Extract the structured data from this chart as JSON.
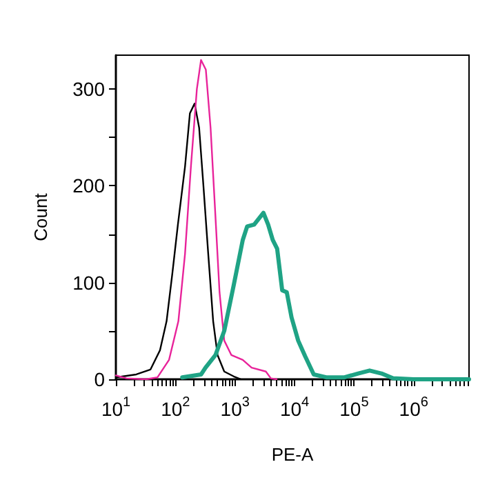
{
  "chart_data": {
    "type": "line",
    "xlabel": "PE-A",
    "ylabel": "Count",
    "log": "x",
    "grid": false,
    "marker": "none",
    "line_style": "solid",
    "xlim": [
      10,
      8500000
    ],
    "ylim": [
      0,
      335
    ],
    "xticks": [
      {
        "value": 10,
        "label": "10$^{1}$"
      },
      {
        "value": 20,
        "label": null
      },
      {
        "value": 30,
        "label": null
      },
      {
        "value": 40,
        "label": null
      },
      {
        "value": 50,
        "label": null
      },
      {
        "value": 60,
        "label": null
      },
      {
        "value": 70,
        "label": null
      },
      {
        "value": 80,
        "label": null
      },
      {
        "value": 90,
        "label": null
      },
      {
        "value": 100,
        "label": "10$^{2}$"
      },
      {
        "value": 200,
        "label": null
      },
      {
        "value": 300,
        "label": null
      },
      {
        "value": 400,
        "label": null
      },
      {
        "value": 500,
        "label": null
      },
      {
        "value": 600,
        "label": null
      },
      {
        "value": 700,
        "label": null
      },
      {
        "value": 800,
        "label": null
      },
      {
        "value": 900,
        "label": null
      },
      {
        "value": 1000,
        "label": "10$^{3}$"
      },
      {
        "value": 2000,
        "label": null
      },
      {
        "value": 3000,
        "label": null
      },
      {
        "value": 4000,
        "label": null
      },
      {
        "value": 5000,
        "label": null
      },
      {
        "value": 6000,
        "label": null
      },
      {
        "value": 7000,
        "label": null
      },
      {
        "value": 8000,
        "label": null
      },
      {
        "value": 9000,
        "label": null
      },
      {
        "value": 10000,
        "label": "10$^{4}$"
      },
      {
        "value": 20000,
        "label": null
      },
      {
        "value": 30000,
        "label": null
      },
      {
        "value": 40000,
        "label": null
      },
      {
        "value": 50000,
        "label": null
      },
      {
        "value": 60000,
        "label": null
      },
      {
        "value": 70000,
        "label": null
      },
      {
        "value": 80000,
        "label": null
      },
      {
        "value": 90000,
        "label": null
      },
      {
        "value": 100000,
        "label": "10$^{5}$"
      },
      {
        "value": 200000,
        "label": null
      },
      {
        "value": 300000,
        "label": null
      },
      {
        "value": 400000,
        "label": null
      },
      {
        "value": 500000,
        "label": null
      },
      {
        "value": 600000,
        "label": null
      },
      {
        "value": 700000,
        "label": null
      },
      {
        "value": 800000,
        "label": null
      },
      {
        "value": 900000,
        "label": null
      },
      {
        "value": 1000000,
        "label": "10$^{6}$"
      },
      {
        "value": 2000000,
        "label": null
      },
      {
        "value": 3000000,
        "label": null
      },
      {
        "value": 4000000,
        "label": null
      },
      {
        "value": 5000000,
        "label": null
      },
      {
        "value": 6000000,
        "label": null
      },
      {
        "value": 7000000,
        "label": null
      },
      {
        "value": 8000000,
        "label": null
      }
    ],
    "yticks": [
      0,
      {
        "value": 50,
        "label": null
      },
      100,
      {
        "value": 150,
        "label": null
      },
      200,
      {
        "value": 250,
        "label": null
      },
      300
    ],
    "series": [
      {
        "color": "#000000",
        "x": [
          10,
          22,
          38,
          55,
          71,
          89,
          110,
          145,
          175,
          210,
          250,
          295,
          355,
          430,
          510,
          660,
          950,
          1260
        ],
        "values": [
          2,
          5,
          10,
          30,
          60,
          110,
          160,
          220,
          275,
          285,
          260,
          200,
          130,
          60,
          25,
          8,
          3,
          0
        ]
      },
      {
        "color": "#e8239a",
        "x": [
          10,
          15,
          32,
          50,
          78,
          112,
          145,
          182,
          229,
          269,
          324,
          389,
          468,
          550,
          660,
          870,
          1350,
          1900,
          3300,
          4000,
          5000
        ],
        "values": [
          4,
          1,
          0,
          2,
          20,
          60,
          130,
          220,
          300,
          330,
          320,
          260,
          170,
          90,
          40,
          25,
          20,
          12,
          8,
          1,
          0
        ]
      },
      {
        "color": "#1fa385",
        "x": [
          130,
          270,
          320,
          470,
          660,
          950,
          1350,
          1600,
          2100,
          3000,
          3600,
          4300,
          5100,
          6200,
          7400,
          8900,
          11500,
          15000,
          21000,
          34000,
          69000,
          117000,
          182000,
          288000,
          450000,
          1000000,
          8500000
        ],
        "values": [
          2,
          5,
          12,
          25,
          50,
          97,
          144,
          158,
          160,
          172,
          160,
          144,
          135,
          92,
          90,
          64,
          40,
          24,
          5,
          2,
          2,
          6,
          9,
          6,
          1,
          0,
          0
        ]
      }
    ]
  }
}
